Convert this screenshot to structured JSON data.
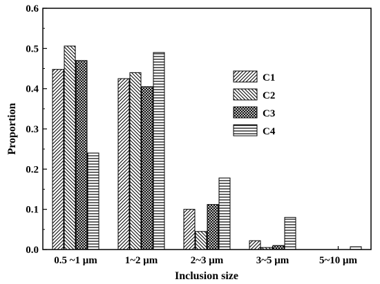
{
  "chart_data": {
    "type": "bar",
    "title": "",
    "xlabel": "Inclusion size",
    "ylabel": "Proportion",
    "categories": [
      "0.5 ~1 μm",
      "1~2 μm",
      "2~3 μm",
      "3~5 μm",
      "5~10 μm"
    ],
    "ylim": [
      0,
      0.6
    ],
    "yticks": [
      "0.0",
      "0.1",
      "0.2",
      "0.3",
      "0.4",
      "0.5",
      "0.6"
    ],
    "grid": false,
    "legend_position": "center-right",
    "series": [
      {
        "name": "C1",
        "pattern": "diagonal-up",
        "values": [
          0.448,
          0.425,
          0.1,
          0.022,
          0.0
        ]
      },
      {
        "name": "C2",
        "pattern": "diagonal-down",
        "values": [
          0.506,
          0.44,
          0.045,
          0.005,
          0.0
        ]
      },
      {
        "name": "C3",
        "pattern": "crosshatch",
        "values": [
          0.47,
          0.405,
          0.112,
          0.01,
          0.0
        ]
      },
      {
        "name": "C4",
        "pattern": "horizontal",
        "values": [
          0.24,
          0.49,
          0.178,
          0.08,
          0.007
        ]
      }
    ]
  }
}
